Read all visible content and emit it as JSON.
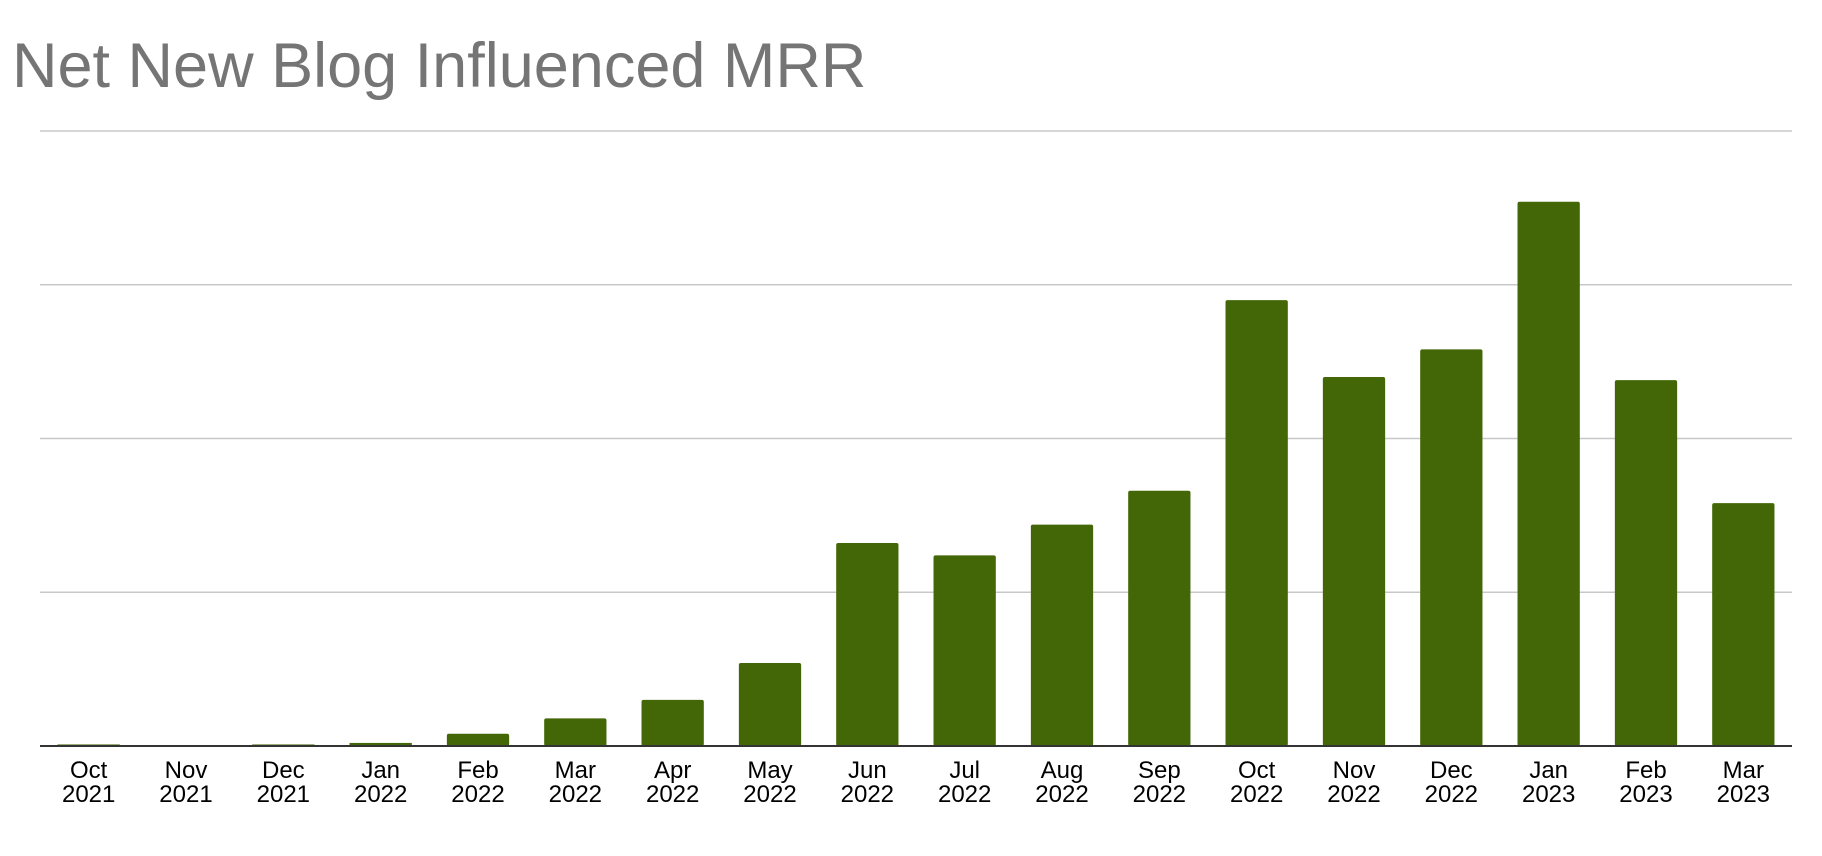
{
  "chart_data": {
    "type": "bar",
    "title": "Net New Blog Influenced MRR",
    "xlabel": "",
    "ylabel": "",
    "categories": [
      [
        "Oct",
        "2021"
      ],
      [
        "Nov",
        "2021"
      ],
      [
        "Dec",
        "2021"
      ],
      [
        "Jan",
        "2022"
      ],
      [
        "Feb",
        "2022"
      ],
      [
        "Mar",
        "2022"
      ],
      [
        "Apr",
        "2022"
      ],
      [
        "May",
        "2022"
      ],
      [
        "Jun",
        "2022"
      ],
      [
        "Jul",
        "2022"
      ],
      [
        "Aug",
        "2022"
      ],
      [
        "Sep",
        "2022"
      ],
      [
        "Oct",
        "2022"
      ],
      [
        "Nov",
        "2022"
      ],
      [
        "Dec",
        "2022"
      ],
      [
        "Jan",
        "2023"
      ],
      [
        "Feb",
        "2023"
      ],
      [
        "Mar",
        "2023"
      ]
    ],
    "values": [
      0.05,
      0,
      0.05,
      0.1,
      0.4,
      0.9,
      1.5,
      2.7,
      6.6,
      6.2,
      7.2,
      8.3,
      14.5,
      12.0,
      12.9,
      17.7,
      11.9,
      7.9
    ],
    "ylim": [
      0,
      20
    ],
    "gridlines": [
      0,
      5,
      10,
      15,
      20
    ],
    "y_tick_labels_shown": false,
    "grid": true,
    "legend": "none",
    "bar_color": "#436706",
    "gridline_color": "#c8c8c8",
    "axis_color": "#333333",
    "title_color": "#757575"
  }
}
